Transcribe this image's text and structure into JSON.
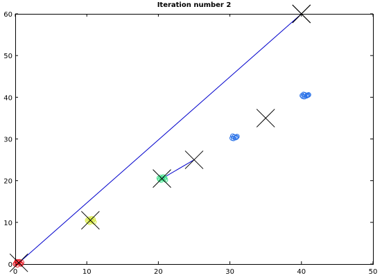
{
  "chart_data": {
    "type": "scatter",
    "title": "Iteration number 2",
    "xlabel": "",
    "ylabel": "",
    "xlim": [
      0,
      50
    ],
    "ylim": [
      0,
      60
    ],
    "x_ticks": [
      0,
      10,
      20,
      30,
      40,
      50
    ],
    "y_ticks": [
      0,
      10,
      20,
      30,
      40,
      50,
      60
    ],
    "grid": false,
    "clusters": [
      {
        "color": "#e8202a",
        "points": [
          [
            0.1,
            0.2
          ],
          [
            0.4,
            0.5
          ],
          [
            0.7,
            0.1
          ],
          [
            0.3,
            -0.2
          ],
          [
            0.9,
            0.4
          ],
          [
            0.5,
            0.3
          ],
          [
            0.2,
            0.6
          ],
          [
            0.8,
            0.0
          ],
          [
            0.6,
            0.6
          ],
          [
            0.0,
            0.0
          ]
        ]
      },
      {
        "color": "#d4e83a",
        "points": [
          [
            10.2,
            10.2
          ],
          [
            10.5,
            10.6
          ],
          [
            10.8,
            10.3
          ],
          [
            10.4,
            10.0
          ],
          [
            10.9,
            10.7
          ],
          [
            10.6,
            10.4
          ],
          [
            10.3,
            10.8
          ],
          [
            11.0,
            10.1
          ],
          [
            10.7,
            10.9
          ],
          [
            10.1,
            10.5
          ]
        ]
      },
      {
        "color": "#3fe08a",
        "points": [
          [
            20.2,
            20.3
          ],
          [
            20.5,
            20.6
          ],
          [
            20.8,
            20.4
          ],
          [
            20.4,
            20.1
          ],
          [
            20.9,
            20.7
          ],
          [
            20.6,
            20.5
          ],
          [
            20.3,
            20.8
          ],
          [
            21.0,
            20.2
          ],
          [
            20.7,
            20.9
          ],
          [
            20.1,
            20.6
          ]
        ]
      },
      {
        "color": "#2a72e8",
        "points": [
          [
            30.3,
            30.2
          ],
          [
            30.6,
            30.5
          ],
          [
            30.9,
            30.4
          ],
          [
            30.5,
            30.1
          ],
          [
            31.0,
            30.6
          ],
          [
            30.4,
            30.7
          ],
          [
            30.8,
            30.3
          ],
          [
            40.2,
            40.2
          ],
          [
            40.5,
            40.6
          ],
          [
            40.8,
            40.4
          ],
          [
            40.4,
            40.1
          ],
          [
            40.9,
            40.5
          ],
          [
            40.3,
            40.7
          ],
          [
            40.7,
            40.3
          ],
          [
            41.0,
            40.6
          ],
          [
            40.1,
            40.4
          ]
        ]
      }
    ],
    "centroids": [
      {
        "current": [
          0.5,
          0.3
        ],
        "previous": [
          40,
          60
        ]
      },
      {
        "current": [
          10.5,
          10.5
        ],
        "previous": [
          10.5,
          10.5
        ]
      },
      {
        "current": [
          20.5,
          20.5
        ],
        "previous": [
          25,
          25
        ]
      },
      {
        "current": [
          35,
          35
        ],
        "previous": [
          35,
          35
        ]
      },
      {
        "current": [
          40,
          60
        ],
        "previous": [
          40,
          60
        ]
      }
    ],
    "trajectory_color": "#0000cc",
    "centroid_color": "#000000"
  }
}
